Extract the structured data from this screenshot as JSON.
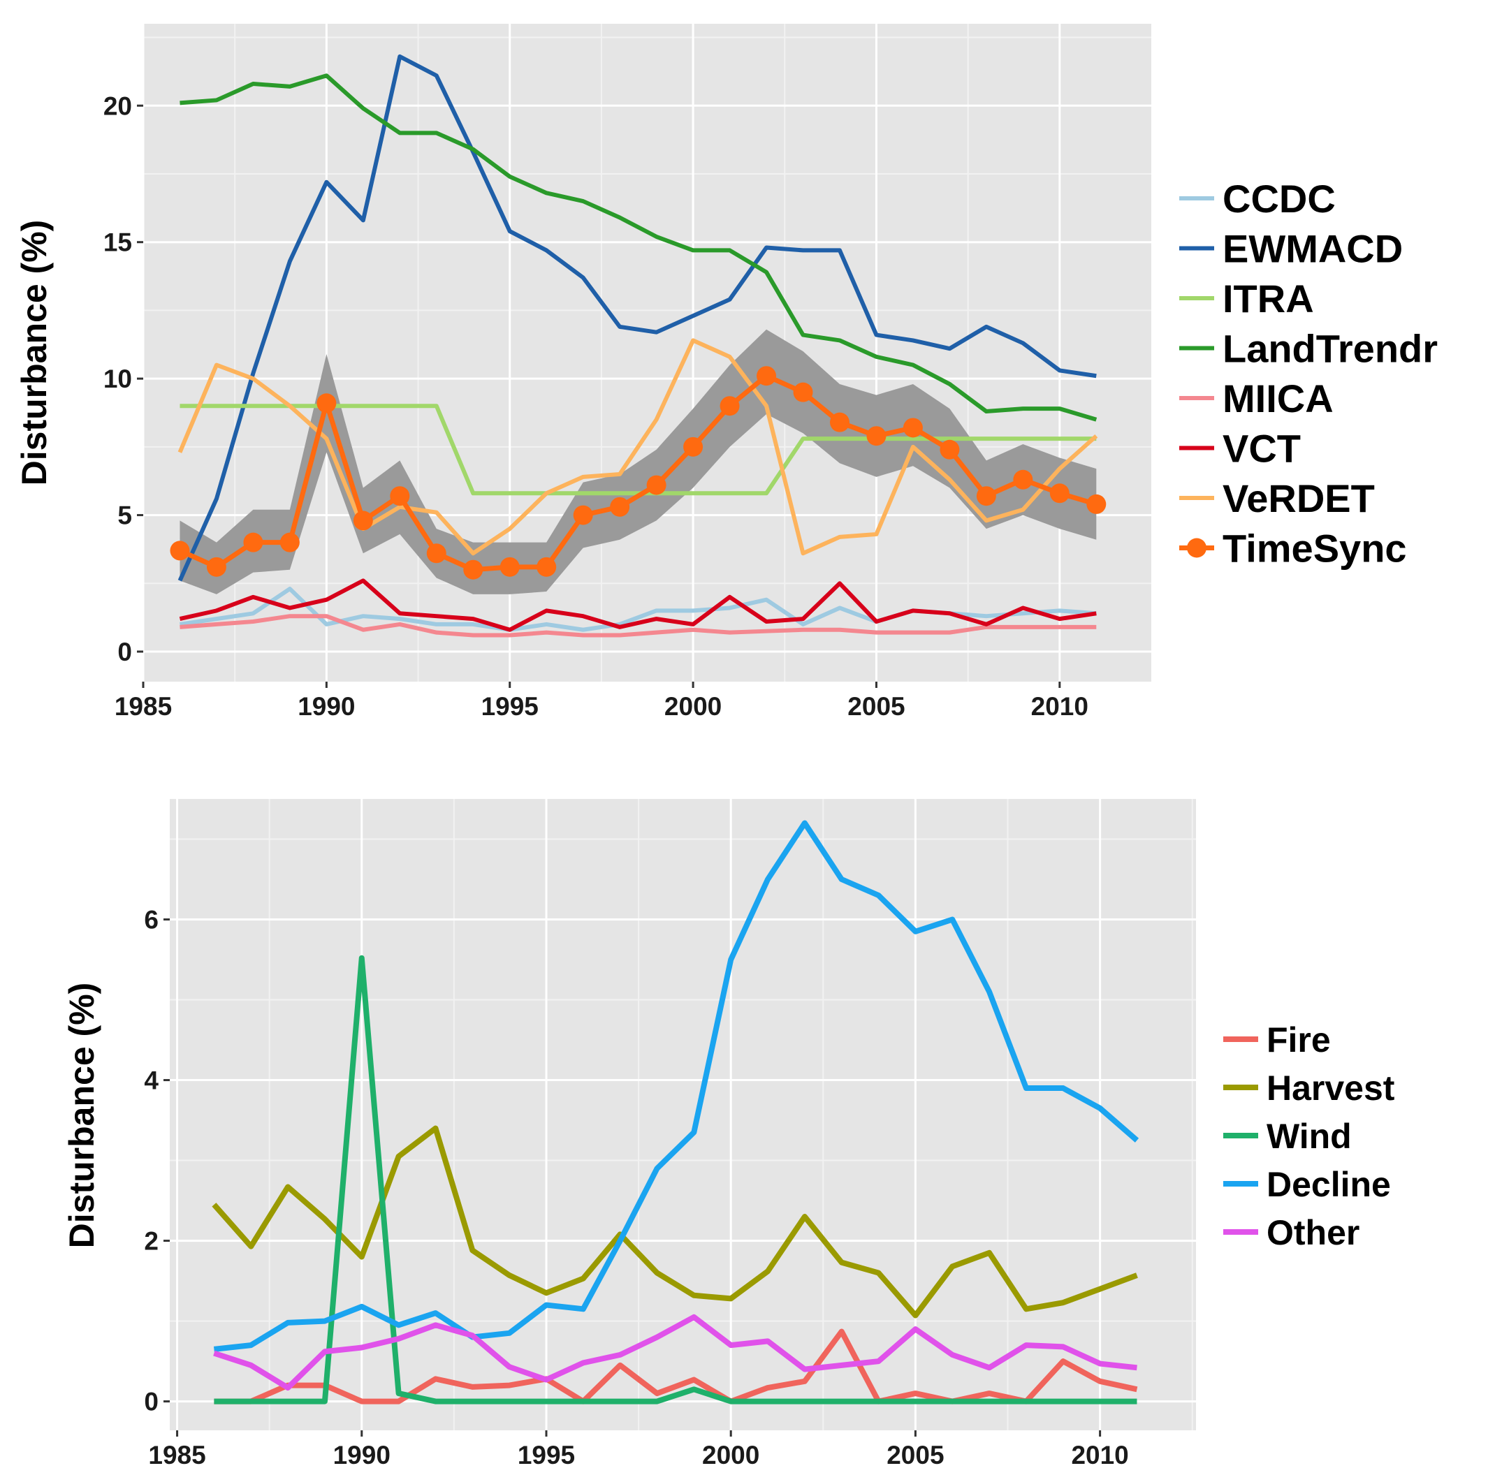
{
  "chart_data": [
    {
      "type": "line",
      "title": "",
      "xlabel": "",
      "ylabel": "Disturbance (%)",
      "xlim": [
        1985,
        2012.5
      ],
      "ylim": [
        -1.1,
        23
      ],
      "xticks": [
        1985,
        1990,
        1995,
        2000,
        2005,
        2010
      ],
      "yticks": [
        0,
        5,
        10,
        15,
        20
      ],
      "grid": true,
      "legend": "right",
      "x": [
        1986,
        1987,
        1988,
        1989,
        1990,
        1991,
        1992,
        1993,
        1994,
        1995,
        1996,
        1997,
        1998,
        1999,
        2000,
        2001,
        2002,
        2003,
        2004,
        2005,
        2006,
        2007,
        2008,
        2009,
        2010,
        2011
      ],
      "series": [
        {
          "name": "CCDC",
          "color": "#9ecae1",
          "width": 6,
          "values": [
            1.0,
            1.2,
            1.4,
            2.3,
            1.0,
            1.3,
            1.2,
            1.0,
            1.0,
            0.8,
            1.0,
            0.8,
            1.0,
            1.5,
            1.5,
            1.6,
            1.9,
            1.0,
            1.6,
            1.1,
            1.5,
            1.4,
            1.3,
            1.4,
            1.5,
            1.4
          ]
        },
        {
          "name": "EWMACD",
          "color": "#1f5fa8",
          "width": 6,
          "values": [
            2.6,
            5.6,
            10.2,
            14.3,
            17.2,
            15.8,
            21.8,
            21.1,
            18.3,
            15.4,
            14.7,
            13.7,
            11.9,
            11.7,
            12.3,
            12.9,
            14.8,
            14.7,
            14.7,
            11.6,
            11.4,
            11.1,
            11.9,
            11.3,
            10.3,
            10.1
          ]
        },
        {
          "name": "ITRA",
          "color": "#a1d76a",
          "width": 6,
          "values": [
            9,
            9,
            9,
            9,
            9,
            9,
            9,
            9,
            5.8,
            5.8,
            5.8,
            5.8,
            5.8,
            5.8,
            5.8,
            5.8,
            5.8,
            7.8,
            7.8,
            7.8,
            7.8,
            7.8,
            7.8,
            7.8,
            7.8,
            7.8
          ]
        },
        {
          "name": "LandTrendr",
          "color": "#2a9a2a",
          "width": 6,
          "values": [
            20.1,
            20.2,
            20.8,
            20.7,
            21.1,
            19.9,
            19.0,
            19.0,
            18.4,
            17.4,
            16.8,
            16.5,
            15.9,
            15.2,
            14.7,
            14.7,
            13.9,
            11.6,
            11.4,
            10.8,
            10.5,
            9.8,
            8.8,
            8.9,
            8.9,
            8.5
          ]
        },
        {
          "name": "MIICA",
          "color": "#f4878f",
          "width": 6,
          "values": [
            0.9,
            1.0,
            1.1,
            1.3,
            1.3,
            0.8,
            1.0,
            0.7,
            0.6,
            0.6,
            0.7,
            0.6,
            0.6,
            0.7,
            0.8,
            0.7,
            0.75,
            0.8,
            0.8,
            0.7,
            0.7,
            0.7,
            0.9,
            0.9,
            0.9,
            0.9
          ]
        },
        {
          "name": "VCT",
          "color": "#d7001a",
          "width": 6,
          "values": [
            1.2,
            1.5,
            2.0,
            1.6,
            1.9,
            2.6,
            1.4,
            1.3,
            1.2,
            0.8,
            1.5,
            1.3,
            0.9,
            1.2,
            1.0,
            2.0,
            1.1,
            1.2,
            2.5,
            1.1,
            1.5,
            1.4,
            1.0,
            1.6,
            1.2,
            1.4
          ]
        },
        {
          "name": "VeRDET",
          "color": "#fdb35c",
          "width": 6,
          "values": [
            7.3,
            10.5,
            10.0,
            9.0,
            7.8,
            4.5,
            5.3,
            5.1,
            3.6,
            4.5,
            5.8,
            6.4,
            6.5,
            8.5,
            11.4,
            10.8,
            9.0,
            3.6,
            4.2,
            4.3,
            7.5,
            6.3,
            4.8,
            5.2,
            6.7,
            7.9
          ]
        },
        {
          "name": "TimeSync",
          "color": "#ff6a10",
          "width": 7,
          "markers": true,
          "values": [
            3.7,
            3.1,
            4.0,
            4.0,
            9.1,
            4.8,
            5.7,
            3.6,
            3.0,
            3.1,
            3.1,
            5.0,
            5.3,
            6.1,
            7.5,
            9.0,
            10.1,
            9.5,
            8.4,
            7.9,
            8.2,
            7.4,
            5.7,
            6.3,
            5.8,
            5.4
          ],
          "band": {
            "color": "#9a9a9a",
            "lower": [
              2.6,
              2.1,
              2.9,
              3.0,
              7.3,
              3.6,
              4.3,
              2.7,
              2.1,
              2.1,
              2.2,
              3.8,
              4.1,
              4.8,
              6.0,
              7.5,
              8.7,
              8.0,
              6.9,
              6.4,
              6.8,
              6.0,
              4.5,
              5.0,
              4.5,
              4.1
            ],
            "upper": [
              4.8,
              4.0,
              5.2,
              5.2,
              10.9,
              6.0,
              7.0,
              4.5,
              4.0,
              4.0,
              4.0,
              6.2,
              6.5,
              7.4,
              8.9,
              10.5,
              11.8,
              11.0,
              9.8,
              9.4,
              9.8,
              8.9,
              7.0,
              7.6,
              7.1,
              6.7
            ]
          }
        }
      ]
    },
    {
      "type": "line",
      "title": "",
      "xlabel": "",
      "ylabel": "Disturbance (%)",
      "xlim": [
        1984.8,
        2012.6
      ],
      "ylim": [
        -0.36,
        7.5
      ],
      "xticks": [
        1985,
        1990,
        1995,
        2000,
        2005,
        2010
      ],
      "yticks": [
        0,
        2,
        4,
        6
      ],
      "grid": true,
      "legend": "right",
      "x": [
        1986,
        1987,
        1988,
        1989,
        1990,
        1991,
        1992,
        1993,
        1994,
        1995,
        1996,
        1997,
        1998,
        1999,
        2000,
        2001,
        2002,
        2003,
        2004,
        2005,
        2006,
        2007,
        2008,
        2009,
        2010,
        2011
      ],
      "series": [
        {
          "name": "Fire",
          "color": "#f0645c",
          "width": 8,
          "values": [
            0,
            0,
            0.2,
            0.2,
            0,
            0,
            0.28,
            0.18,
            0.2,
            0.28,
            0,
            0.45,
            0.1,
            0.27,
            0,
            0.17,
            0.25,
            0.87,
            0,
            0.1,
            0,
            0.1,
            0,
            0.5,
            0.25,
            0.15
          ]
        },
        {
          "name": "Harvest",
          "color": "#9a9a00",
          "width": 8,
          "values": [
            2.45,
            1.93,
            2.67,
            2.27,
            1.8,
            3.05,
            3.4,
            1.88,
            1.57,
            1.35,
            1.53,
            2.08,
            1.6,
            1.32,
            1.28,
            1.62,
            2.3,
            1.73,
            1.6,
            1.07,
            1.68,
            1.85,
            1.15,
            1.23,
            1.4,
            1.57
          ]
        },
        {
          "name": "Wind",
          "color": "#1fb06a",
          "width": 8,
          "values": [
            0,
            0,
            0,
            0,
            5.52,
            0.1,
            0,
            0,
            0,
            0,
            0,
            0,
            0,
            0.15,
            0,
            0,
            0,
            0,
            0,
            0,
            0,
            0,
            0,
            0,
            0,
            0
          ]
        },
        {
          "name": "Decline",
          "color": "#1aa4f0",
          "width": 8,
          "values": [
            0.65,
            0.7,
            0.98,
            1.0,
            1.18,
            0.95,
            1.1,
            0.8,
            0.85,
            1.2,
            1.15,
            2.0,
            2.9,
            3.35,
            5.5,
            6.5,
            7.2,
            6.5,
            6.3,
            5.85,
            6.0,
            5.1,
            3.9,
            3.9,
            3.65,
            3.25
          ]
        },
        {
          "name": "Other",
          "color": "#e052ea",
          "width": 8,
          "values": [
            0.6,
            0.45,
            0.17,
            0.62,
            0.67,
            0.78,
            0.95,
            0.82,
            0.43,
            0.27,
            0.48,
            0.58,
            0.8,
            1.05,
            0.7,
            0.75,
            0.4,
            0.45,
            0.5,
            0.9,
            0.58,
            0.42,
            0.7,
            0.68,
            0.47,
            0.42
          ]
        }
      ]
    }
  ]
}
